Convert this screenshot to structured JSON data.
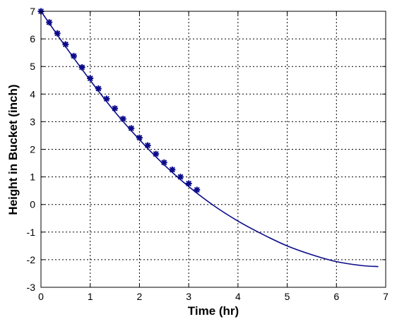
{
  "chart_data": {
    "type": "line",
    "title": "",
    "xlabel": "Time (hr)",
    "ylabel": "Height in Bucket (inch)",
    "xlim": [
      0,
      7
    ],
    "ylim": [
      -3,
      7
    ],
    "xticks": [
      0,
      1,
      2,
      3,
      4,
      5,
      6,
      7
    ],
    "yticks": [
      -3,
      -2,
      -1,
      0,
      1,
      2,
      3,
      4,
      5,
      6,
      7
    ],
    "grid": true,
    "grid_style": "dashed",
    "series": [
      {
        "kind": "line",
        "color": "#0b0b8a",
        "x": [
          0,
          0.5,
          1.0,
          1.5,
          2.0,
          2.5,
          3.0,
          3.5,
          4.0,
          4.5,
          5.0,
          5.5,
          6.0,
          6.5,
          6.85
        ],
        "y": [
          7.0,
          5.72,
          4.5,
          3.36,
          2.35,
          1.44,
          0.65,
          -0.03,
          -0.6,
          -1.08,
          -1.5,
          -1.82,
          -2.07,
          -2.21,
          -2.25
        ]
      },
      {
        "kind": "markers",
        "marker": "star",
        "color": "#0b0b8a",
        "x": [
          0,
          0.167,
          0.333,
          0.5,
          0.667,
          0.833,
          1.0,
          1.167,
          1.333,
          1.5,
          1.667,
          1.833,
          2.0,
          2.167,
          2.333,
          2.5,
          2.667,
          2.833,
          3.0,
          3.167
        ],
        "y": [
          7.0,
          6.6,
          6.2,
          5.8,
          5.38,
          4.97,
          4.57,
          4.2,
          3.83,
          3.48,
          3.1,
          2.76,
          2.42,
          2.14,
          1.83,
          1.52,
          1.26,
          1.0,
          0.76,
          0.53
        ]
      }
    ]
  }
}
